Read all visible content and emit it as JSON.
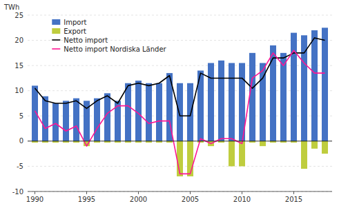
{
  "chart_data": {
    "type": "bar",
    "ylabel": "TWh",
    "x": [
      1990,
      1991,
      1992,
      1993,
      1994,
      1995,
      1996,
      1997,
      1998,
      1999,
      2000,
      2001,
      2002,
      2003,
      2004,
      2005,
      2006,
      2007,
      2008,
      2009,
      2010,
      2011,
      2012,
      2013,
      2014,
      2015,
      2016,
      2017,
      2018
    ],
    "series": [
      {
        "name": "Import",
        "type": "bar",
        "color": "#4472C4",
        "values": [
          11,
          8.9,
          7.5,
          8.0,
          8.5,
          8.0,
          8.5,
          9.5,
          8.0,
          11.5,
          12.0,
          11.5,
          11.5,
          13.5,
          11.5,
          11.5,
          14.0,
          15.5,
          16.0,
          15.5,
          15.5,
          17.5,
          15.5,
          19.0,
          17.5,
          21.5,
          21.0,
          22.0,
          22.5
        ]
      },
      {
        "name": "Export",
        "type": "bar",
        "color": "#BFCD3E",
        "values": [
          -0.3,
          -0.3,
          -0.3,
          -0.3,
          -0.3,
          -1.0,
          -0.3,
          -0.3,
          -0.3,
          -0.3,
          -0.3,
          -0.3,
          -0.3,
          -0.3,
          -7.0,
          -7.0,
          -0.3,
          -1.0,
          -0.3,
          -5.0,
          -5.0,
          -0.3,
          -1.0,
          -0.3,
          -0.3,
          -0.3,
          -5.5,
          -1.5,
          -2.5
        ]
      },
      {
        "name": "Netto import",
        "type": "line",
        "color": "#000000",
        "values": [
          10.5,
          8.0,
          7.5,
          7.5,
          8.0,
          6.5,
          8.0,
          9.0,
          7.5,
          11.0,
          11.5,
          11.0,
          11.5,
          13.0,
          5.0,
          5.0,
          13.5,
          12.5,
          12.5,
          12.5,
          12.5,
          10.5,
          12.5,
          16.5,
          16.5,
          17.5,
          17.5,
          20.5,
          20.0
        ]
      },
      {
        "name": "Netto import Nordiska Länder",
        "type": "line",
        "color": "#FF1493",
        "values": [
          6.0,
          2.5,
          3.5,
          2.0,
          3.0,
          -1.0,
          2.5,
          5.5,
          7.0,
          7.0,
          5.5,
          3.5,
          4.0,
          4.0,
          -6.5,
          -6.5,
          0.5,
          -0.5,
          0.5,
          0.5,
          -0.5,
          12.5,
          14.0,
          17.5,
          15.0,
          18.0,
          15.5,
          13.5,
          13.5
        ]
      }
    ],
    "xlim": [
      1989.3,
      2018.7
    ],
    "xticks": [
      1990,
      1995,
      2000,
      2005,
      2010,
      2015
    ],
    "ylim": [
      -10,
      25
    ],
    "yticks": [
      -10,
      -5,
      0,
      5,
      10,
      15,
      20,
      25
    ],
    "grid": true,
    "legend": "upper left"
  }
}
